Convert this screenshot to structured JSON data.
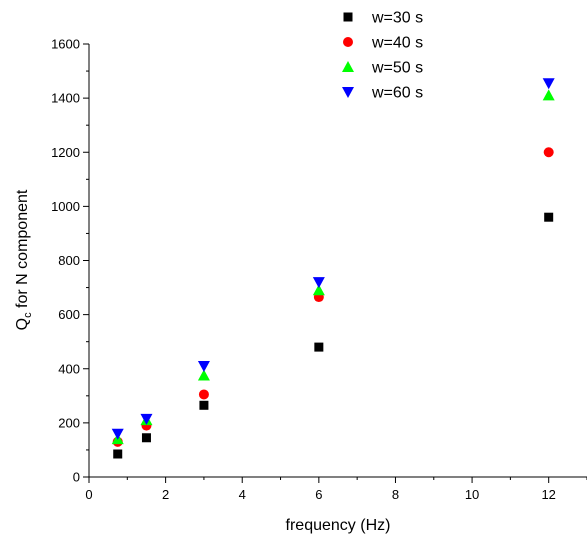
{
  "chart_data": {
    "type": "scatter",
    "title": "",
    "xlabel": "frequency (Hz)",
    "ylabel_main": "Q",
    "ylabel_sub": "c",
    "ylabel_rest": " for N component",
    "xlim": [
      0,
      13
    ],
    "ylim": [
      0,
      1600
    ],
    "x_ticks": [
      "0",
      "2",
      "4",
      "6",
      "8",
      "10",
      "12"
    ],
    "y_ticks": [
      "0",
      "200",
      "400",
      "600",
      "800",
      "1000",
      "1200",
      "1400",
      "1600"
    ],
    "grid": false,
    "legend_position": "top-right",
    "series": [
      {
        "name": "w=30 s",
        "marker": "square",
        "color": "#000000",
        "x": [
          0.75,
          1.5,
          3,
          6,
          12
        ],
        "y": [
          85,
          145,
          265,
          480,
          960
        ]
      },
      {
        "name": "w=40 s",
        "marker": "circle",
        "color": "#ff0000",
        "x": [
          0.75,
          1.5,
          3,
          6,
          12
        ],
        "y": [
          130,
          190,
          305,
          665,
          1200
        ]
      },
      {
        "name": "w=50 s",
        "marker": "triangle-up",
        "color": "#00ff00",
        "x": [
          0.75,
          1.5,
          3,
          6,
          12
        ],
        "y": [
          140,
          210,
          375,
          690,
          1410
        ]
      },
      {
        "name": "w=60 s",
        "marker": "triangle-down",
        "color": "#0000ff",
        "x": [
          0.75,
          1.5,
          3,
          6,
          12
        ],
        "y": [
          160,
          215,
          410,
          720,
          1455
        ]
      }
    ]
  }
}
